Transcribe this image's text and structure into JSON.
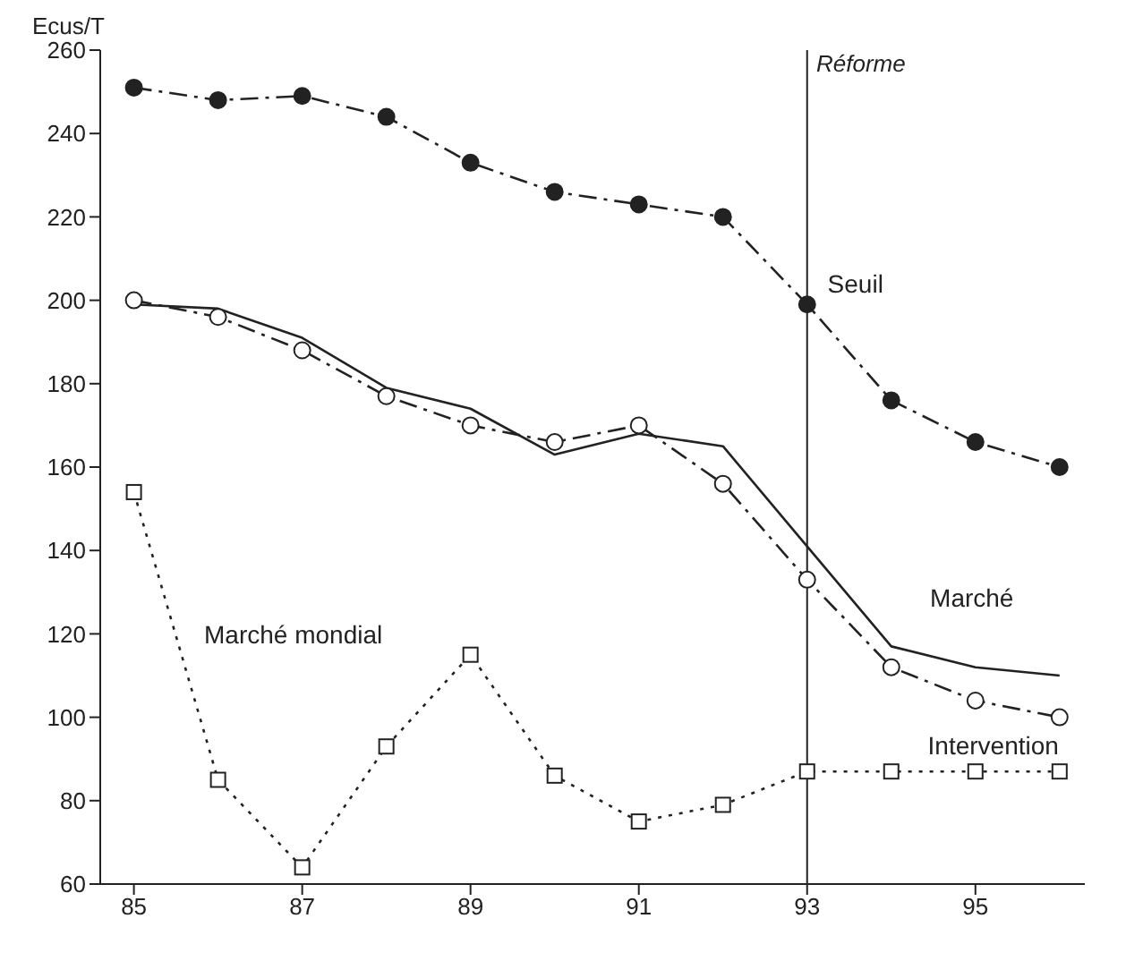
{
  "chart_data": {
    "type": "line",
    "ylabel": "Ecus/T",
    "x": [
      85,
      86,
      87,
      88,
      89,
      90,
      91,
      92,
      93,
      94,
      95,
      96
    ],
    "series": [
      {
        "name": "Seuil",
        "color": "#222222",
        "marker": "circle",
        "colors": [
          "#222222",
          "#222222",
          "#222222",
          "#222222",
          "#222222",
          "#222222",
          "#222222",
          "#222222",
          "#222222",
          "#222222",
          "#222222",
          "#222222"
        ],
        "line_style": "dashdot",
        "values": [
          251,
          248,
          249,
          244,
          233,
          226,
          223,
          220,
          199,
          176,
          166,
          160
        ]
      },
      {
        "name": "Intervention",
        "color": "#222222",
        "marker": "circle",
        "line_style": "dashdot",
        "values": [
          200,
          196,
          188,
          177,
          170,
          166,
          170,
          156,
          133,
          112,
          104,
          100
        ]
      },
      {
        "name": "Marché",
        "color": "#222222",
        "marker": "none",
        "line_style": "solid",
        "values": [
          199,
          198,
          191,
          179,
          174,
          163,
          168,
          165,
          141,
          117,
          112,
          110
        ]
      },
      {
        "name": "Marché mondial",
        "color": "#222222",
        "marker": "square",
        "line_style": "dotted",
        "values": [
          154,
          85,
          64,
          93,
          115,
          86,
          75,
          79,
          87,
          87,
          87,
          87
        ]
      }
    ],
    "xlim": [
      84.6,
      96.3
    ],
    "xticks": [
      85,
      87,
      89,
      91,
      93,
      95
    ],
    "ylim": [
      60,
      260
    ],
    "yticks": [
      60,
      80,
      100,
      120,
      140,
      160,
      180,
      200,
      220,
      240,
      260
    ],
    "ref_lines": [
      {
        "axis": "x",
        "value": 93,
        "label": "Réforme"
      }
    ],
    "grid": false,
    "legend": false
  }
}
